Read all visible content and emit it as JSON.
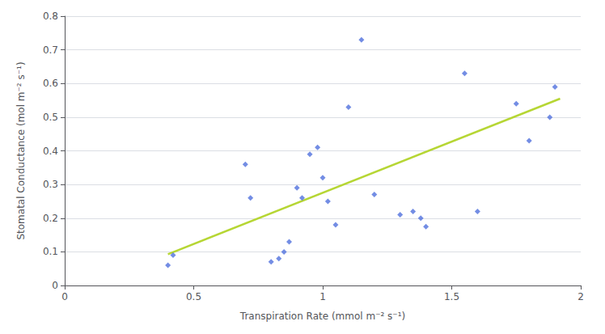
{
  "chart_data": {
    "type": "scatter",
    "x": [
      0.4,
      0.42,
      0.7,
      0.72,
      0.8,
      0.83,
      0.85,
      0.87,
      0.9,
      0.92,
      0.95,
      0.98,
      1.0,
      1.02,
      1.05,
      1.1,
      1.15,
      1.2,
      1.3,
      1.35,
      1.38,
      1.4,
      1.55,
      1.6,
      1.75,
      1.8,
      1.88,
      1.9
    ],
    "values": [
      0.06,
      0.09,
      0.36,
      0.26,
      0.07,
      0.08,
      0.1,
      0.13,
      0.29,
      0.26,
      0.39,
      0.41,
      0.32,
      0.25,
      0.18,
      0.53,
      0.73,
      0.27,
      0.21,
      0.22,
      0.2,
      0.175,
      0.63,
      0.22,
      0.54,
      0.43,
      0.5,
      0.59
    ],
    "marker": "diamond",
    "trendline": {
      "type": "line",
      "x": [
        0.4,
        1.92
      ],
      "values": [
        0.093,
        0.555
      ]
    },
    "xlabel": "Transpiration Rate (mmol m⁻² s⁻¹)",
    "ylabel": "Stomatal Conductance (mol m⁻² s⁻¹)",
    "xlim": [
      0,
      2.0
    ],
    "ylim": [
      0,
      0.8
    ],
    "xticks": [
      0,
      0.5,
      1.0,
      1.5,
      2.0
    ],
    "yticks": [
      0,
      0.1,
      0.2,
      0.3,
      0.4,
      0.5,
      0.6,
      0.7,
      0.8
    ],
    "grid": true
  }
}
